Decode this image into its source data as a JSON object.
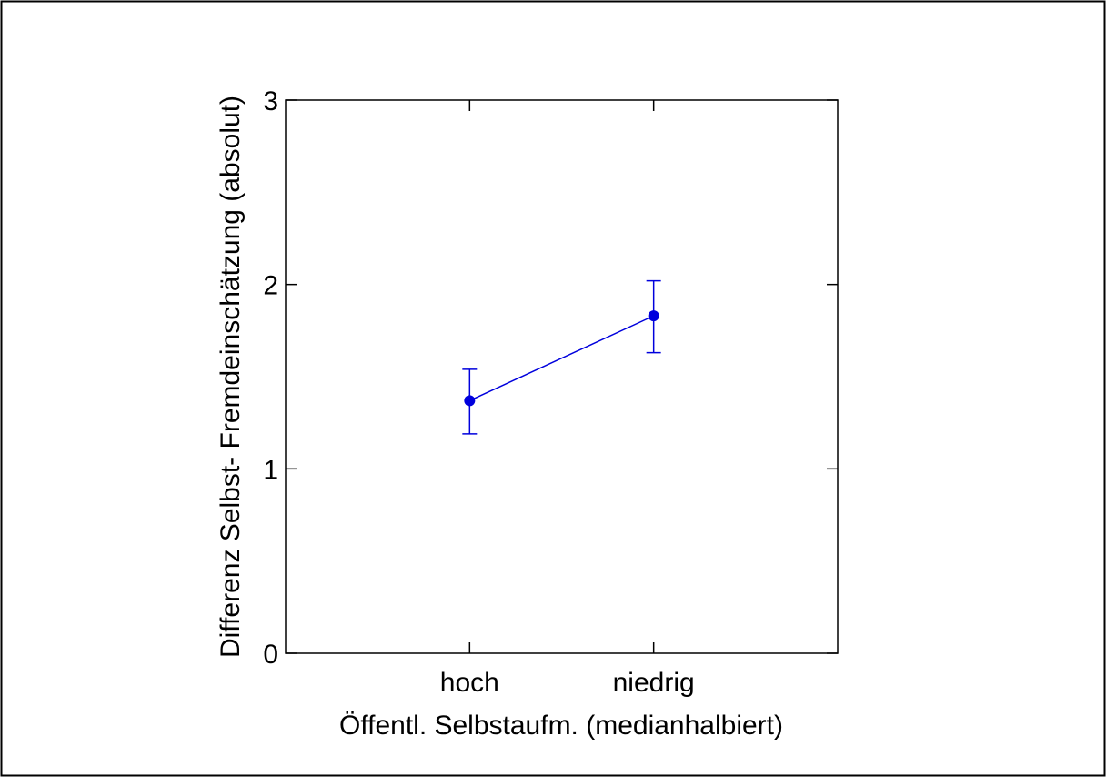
{
  "chart_data": {
    "type": "line",
    "title": "",
    "xlabel": "Öffentl. Selbstaufm. (medianhalbiert)",
    "ylabel": "Differenz Selbst- Fremdeinschätzung (absolut)",
    "categories": [
      "hoch",
      "niedrig"
    ],
    "series": [
      {
        "values": [
          1.37,
          1.83
        ],
        "error_low": [
          1.19,
          1.63
        ],
        "error_high": [
          1.54,
          2.02
        ],
        "color": "#0000dd"
      }
    ],
    "ylim": [
      0,
      3
    ],
    "yticks": [
      0,
      1,
      2,
      3
    ],
    "ytick_labels": [
      "0",
      "1",
      "2",
      "3"
    ],
    "grid": false,
    "legend": "none"
  }
}
